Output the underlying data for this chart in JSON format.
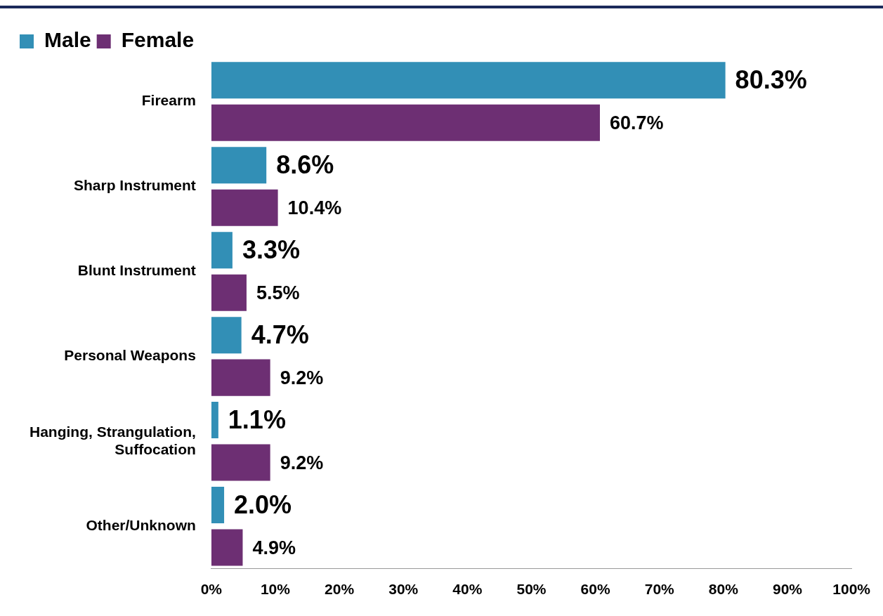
{
  "chart_data": {
    "type": "bar",
    "orientation": "horizontal",
    "categories": [
      "Firearm",
      "Sharp Instrument",
      "Blunt Instrument",
      "Personal Weapons",
      "Hanging, Strangulation, Suffocation",
      "Other/Unknown"
    ],
    "series": [
      {
        "name": "Male",
        "color": "#328fb6",
        "values": [
          80.3,
          8.6,
          3.3,
          4.7,
          1.1,
          2.0
        ],
        "value_labels": [
          "80.3%",
          "8.6%",
          "3.3%",
          "4.7%",
          "1.1%",
          "2.0%"
        ]
      },
      {
        "name": "Female",
        "color": "#6d2f73",
        "values": [
          60.7,
          10.4,
          5.5,
          9.2,
          9.2,
          4.9
        ],
        "value_labels": [
          "60.7%",
          "10.4%",
          "5.5%",
          "9.2%",
          "9.2%",
          "4.9%"
        ]
      }
    ],
    "xlim": [
      0,
      100
    ],
    "xticks": [
      {
        "value": 0,
        "label": "0%"
      },
      {
        "value": 10,
        "label": "10%"
      },
      {
        "value": 20,
        "label": "20%"
      },
      {
        "value": 30,
        "label": "30%"
      },
      {
        "value": 40,
        "label": "40%"
      },
      {
        "value": 50,
        "label": "50%"
      },
      {
        "value": 60,
        "label": "60%"
      },
      {
        "value": 70,
        "label": "70%"
      },
      {
        "value": 80,
        "label": "80%"
      },
      {
        "value": 90,
        "label": "90%"
      },
      {
        "value": 100,
        "label": "100%"
      }
    ],
    "grid": false,
    "legend": "top left"
  }
}
